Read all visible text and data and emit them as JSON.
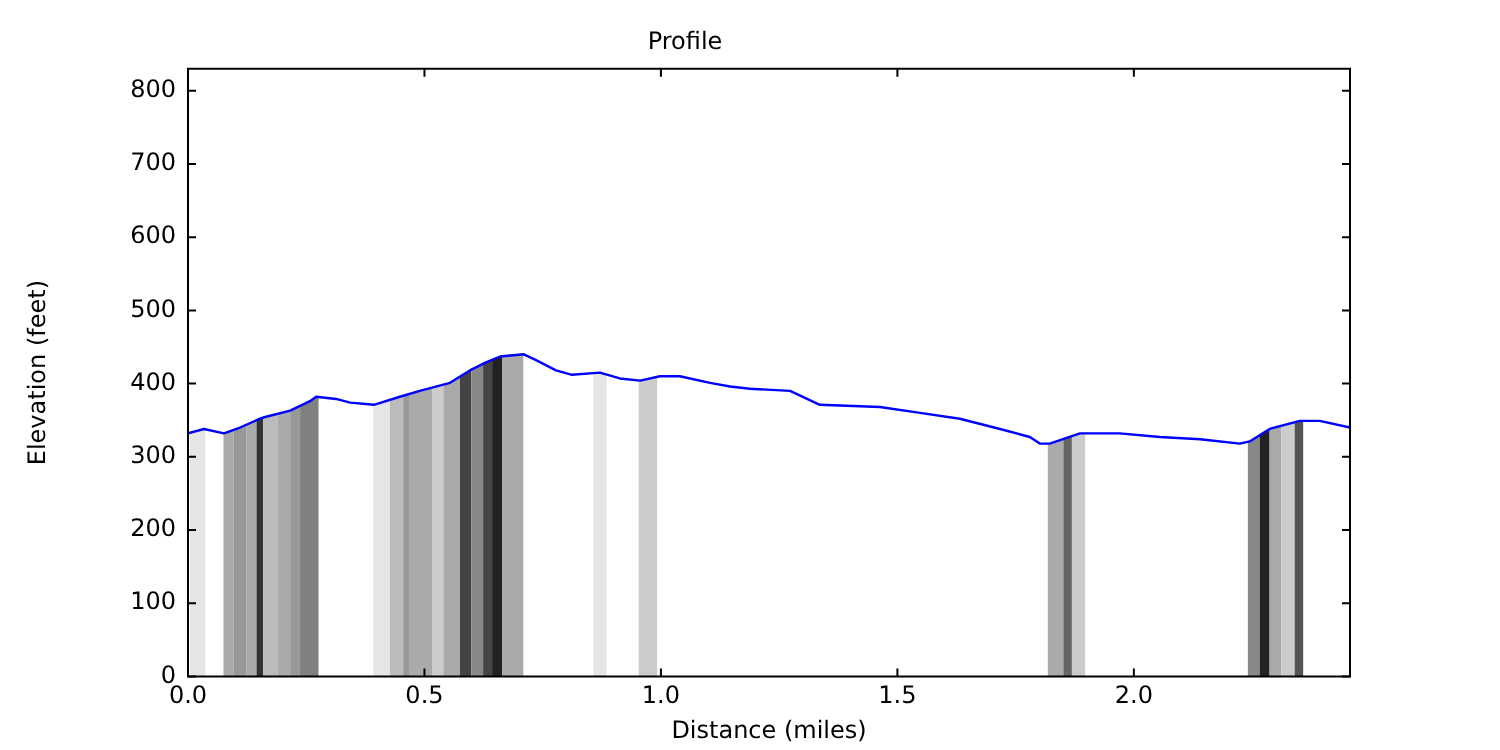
{
  "chart_data": {
    "type": "line",
    "title": "Profile",
    "xlabel": "Distance (miles)",
    "ylabel": "Elevation (feet)",
    "xlim": [
      0,
      2.457
    ],
    "ylim": [
      0,
      830
    ],
    "xticks": [
      {
        "value": 0,
        "label": "0.0"
      },
      {
        "value": 0.5,
        "label": "0.5"
      },
      {
        "value": 1,
        "label": "1.0"
      },
      {
        "value": 1.5,
        "label": "1.5"
      },
      {
        "value": 2,
        "label": "2.0"
      }
    ],
    "yticks": [
      0,
      100,
      200,
      300,
      400,
      500,
      600,
      700,
      800
    ],
    "grid": false,
    "legend": false,
    "marker": "none",
    "line_style": "solid",
    "series": [
      {
        "color": "#0000ff",
        "x": [
          0,
          0.034,
          0.076,
          0.11,
          0.152,
          0.161,
          0.216,
          0.258,
          0.271,
          0.313,
          0.343,
          0.393,
          0.448,
          0.49,
          0.554,
          0.596,
          0.63,
          0.66,
          0.71,
          0.736,
          0.778,
          0.812,
          0.871,
          0.913,
          0.956,
          0.998,
          1.04,
          1.104,
          1.146,
          1.188,
          1.273,
          1.336,
          1.463,
          1.548,
          1.632,
          1.717,
          1.78,
          1.801,
          1.822,
          1.886,
          1.97,
          2.055,
          2.14,
          2.224,
          2.245,
          2.287,
          2.351,
          2.393,
          2.457
        ],
        "values": [
          332,
          338,
          332,
          340,
          352,
          354,
          363,
          376,
          382,
          379,
          374,
          371,
          382,
          390,
          401,
          418,
          429,
          437,
          440,
          432,
          418,
          412,
          415,
          407,
          404,
          410,
          410,
          401,
          396,
          393,
          390,
          371,
          368,
          360,
          352,
          338,
          327,
          318,
          318,
          332,
          332,
          327,
          324,
          318,
          321,
          338,
          349,
          349,
          340
        ]
      }
    ],
    "bands": [
      {
        "axis": "x",
        "from": 0.004,
        "to": 0.037,
        "color": "#e5e5e5"
      },
      {
        "axis": "x",
        "from": 0.075,
        "to": 0.096,
        "color": "#aaaaaa"
      },
      {
        "axis": "x",
        "from": 0.096,
        "to": 0.124,
        "color": "#999999"
      },
      {
        "axis": "x",
        "from": 0.124,
        "to": 0.145,
        "color": "#aaaaaa"
      },
      {
        "axis": "x",
        "from": 0.145,
        "to": 0.159,
        "color": "#333333"
      },
      {
        "axis": "x",
        "from": 0.159,
        "to": 0.19,
        "color": "#bbbbbb"
      },
      {
        "axis": "x",
        "from": 0.19,
        "to": 0.216,
        "color": "#aaaaaa"
      },
      {
        "axis": "x",
        "from": 0.216,
        "to": 0.237,
        "color": "#999999"
      },
      {
        "axis": "x",
        "from": 0.237,
        "to": 0.276,
        "color": "#808080"
      },
      {
        "axis": "x",
        "from": 0.392,
        "to": 0.427,
        "color": "#e5e5e5"
      },
      {
        "axis": "x",
        "from": 0.427,
        "to": 0.455,
        "color": "#bbbbbb"
      },
      {
        "axis": "x",
        "from": 0.455,
        "to": 0.469,
        "color": "#999999"
      },
      {
        "axis": "x",
        "from": 0.469,
        "to": 0.516,
        "color": "#aaaaaa"
      },
      {
        "axis": "x",
        "from": 0.516,
        "to": 0.54,
        "color": "#cccccc"
      },
      {
        "axis": "x",
        "from": 0.54,
        "to": 0.575,
        "color": "#aaaaaa"
      },
      {
        "axis": "x",
        "from": 0.575,
        "to": 0.599,
        "color": "#444444"
      },
      {
        "axis": "x",
        "from": 0.599,
        "to": 0.624,
        "color": "#888888"
      },
      {
        "axis": "x",
        "from": 0.624,
        "to": 0.643,
        "color": "#444444"
      },
      {
        "axis": "x",
        "from": 0.643,
        "to": 0.664,
        "color": "#222222"
      },
      {
        "axis": "x",
        "from": 0.664,
        "to": 0.709,
        "color": "#aaaaaa"
      },
      {
        "axis": "x",
        "from": 0.857,
        "to": 0.885,
        "color": "#e5e5e5"
      },
      {
        "axis": "x",
        "from": 0.953,
        "to": 0.992,
        "color": "#cccccc"
      },
      {
        "axis": "x",
        "from": 1.818,
        "to": 1.851,
        "color": "#aaaaaa"
      },
      {
        "axis": "x",
        "from": 1.851,
        "to": 1.869,
        "color": "#666666"
      },
      {
        "axis": "x",
        "from": 1.869,
        "to": 1.897,
        "color": "#cccccc"
      },
      {
        "axis": "x",
        "from": 2.241,
        "to": 2.266,
        "color": "#888888"
      },
      {
        "axis": "x",
        "from": 2.266,
        "to": 2.287,
        "color": "#222222"
      },
      {
        "axis": "x",
        "from": 2.287,
        "to": 2.312,
        "color": "#aaaaaa"
      },
      {
        "axis": "x",
        "from": 2.312,
        "to": 2.34,
        "color": "#cccccc"
      },
      {
        "axis": "x",
        "from": 2.34,
        "to": 2.358,
        "color": "#555555"
      }
    ]
  }
}
